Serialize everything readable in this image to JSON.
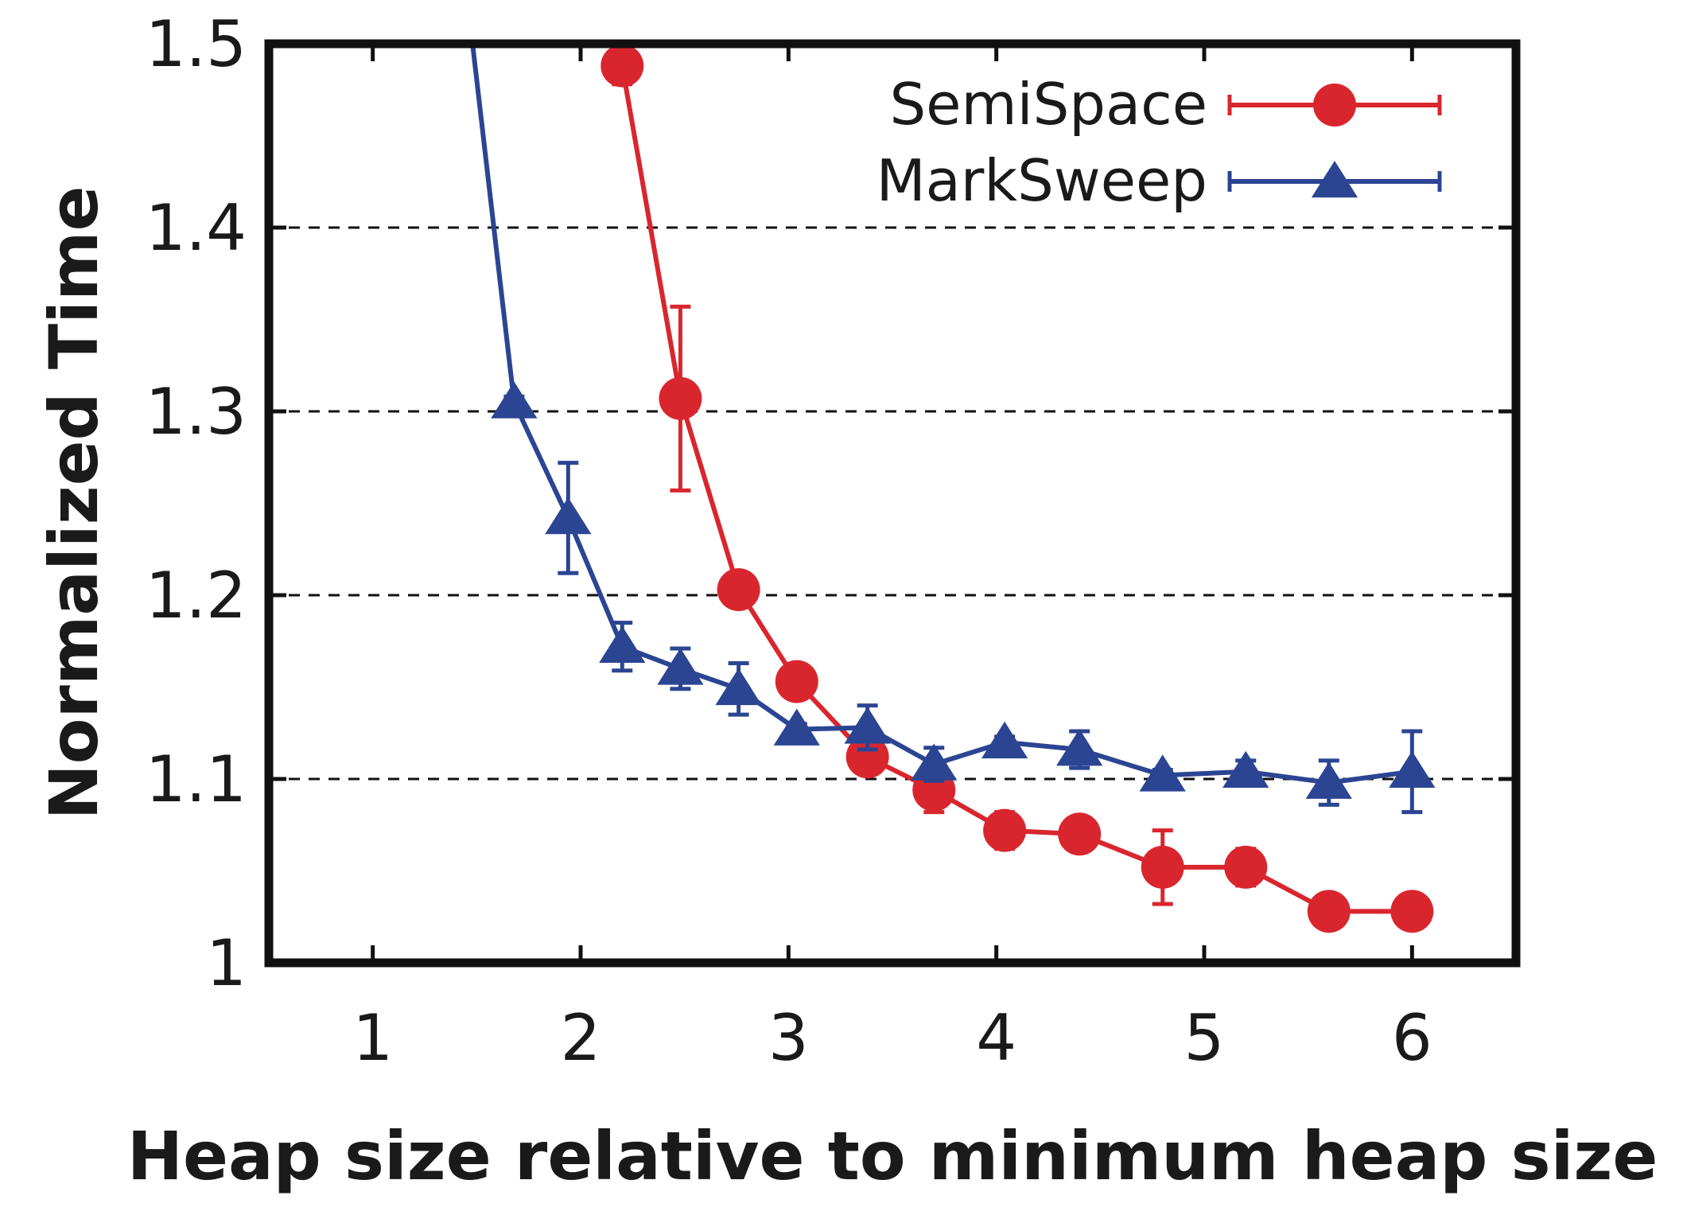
{
  "chart_data": {
    "type": "line",
    "xlabel": "Heap size relative to minimum heap size",
    "ylabel": "Normalized Time",
    "xlim": [
      0.5,
      6.5
    ],
    "ylim": [
      1.0,
      1.5
    ],
    "xticks": [
      1,
      2,
      3,
      4,
      5,
      6
    ],
    "yticks": [
      1.0,
      1.1,
      1.2,
      1.3,
      1.4,
      1.5
    ],
    "ytick_labels": [
      "1",
      "1.1",
      "1.2",
      "1.3",
      "1.4",
      "1.5"
    ],
    "grid": "horizontal-dashed",
    "legend_placement": "top-right",
    "series": [
      {
        "name": "SemiSpace",
        "color": "#d9262e",
        "marker": "circle",
        "x": [
          2.2,
          2.48,
          2.76,
          3.04,
          3.38,
          3.7,
          4.04,
          4.4,
          4.8,
          5.2,
          5.6,
          6.0
        ],
        "y": [
          1.488,
          1.307,
          1.203,
          1.153,
          1.112,
          1.094,
          1.072,
          1.07,
          1.052,
          1.052,
          1.028,
          1.028
        ],
        "err": [
          0.01,
          0.05,
          0.006,
          0.005,
          0.008,
          0.012,
          0.01,
          0.008,
          0.02,
          0.01,
          0.003,
          0.003
        ]
      },
      {
        "name": "MarkSweep",
        "color": "#2b4593",
        "marker": "triangle",
        "x": [
          1.48,
          1.68,
          1.94,
          2.2,
          2.48,
          2.76,
          3.04,
          3.38,
          3.7,
          4.04,
          4.4,
          4.8,
          5.2,
          5.6,
          6.0
        ],
        "y": [
          1.5,
          1.305,
          1.242,
          1.172,
          1.16,
          1.149,
          1.127,
          1.128,
          1.108,
          1.12,
          1.116,
          1.102,
          1.104,
          1.098,
          1.104
        ],
        "err": [
          0,
          0.003,
          0.03,
          0.013,
          0.011,
          0.014,
          0.003,
          0.012,
          0.009,
          0.003,
          0.01,
          0.003,
          0.006,
          0.012,
          0.022
        ]
      }
    ]
  }
}
